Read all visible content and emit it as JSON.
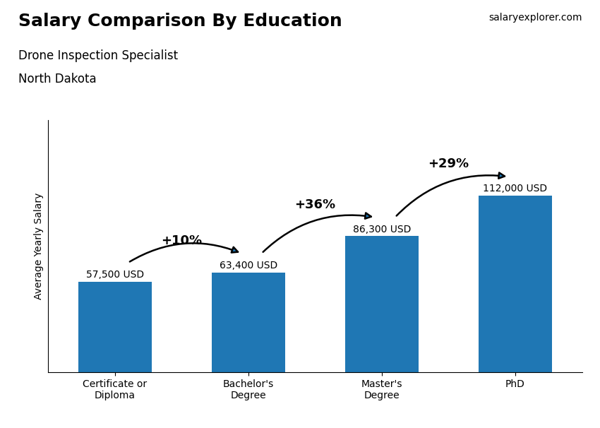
{
  "chart_data": {
    "type": "bar",
    "title": "Salary Comparison By Education",
    "subtitle": [
      "Drone Inspection Specialist",
      "North Dakota"
    ],
    "source": "salaryexplorer.com",
    "ylabel": "Average Yearly Salary",
    "categories": [
      "Certificate or\nDiploma",
      "Bachelor's\nDegree",
      "Master's\nDegree",
      "PhD"
    ],
    "values": [
      57500,
      63400,
      86300,
      112000
    ],
    "value_labels": [
      "57,500 USD",
      "63,400 USD",
      "86,300 USD",
      "112,000 USD"
    ],
    "data_labels": true,
    "annotations": [
      "+10%",
      "+36%",
      "+29%"
    ],
    "ylim": [
      0,
      160000
    ],
    "tick_labels": "x",
    "grid": false
  }
}
